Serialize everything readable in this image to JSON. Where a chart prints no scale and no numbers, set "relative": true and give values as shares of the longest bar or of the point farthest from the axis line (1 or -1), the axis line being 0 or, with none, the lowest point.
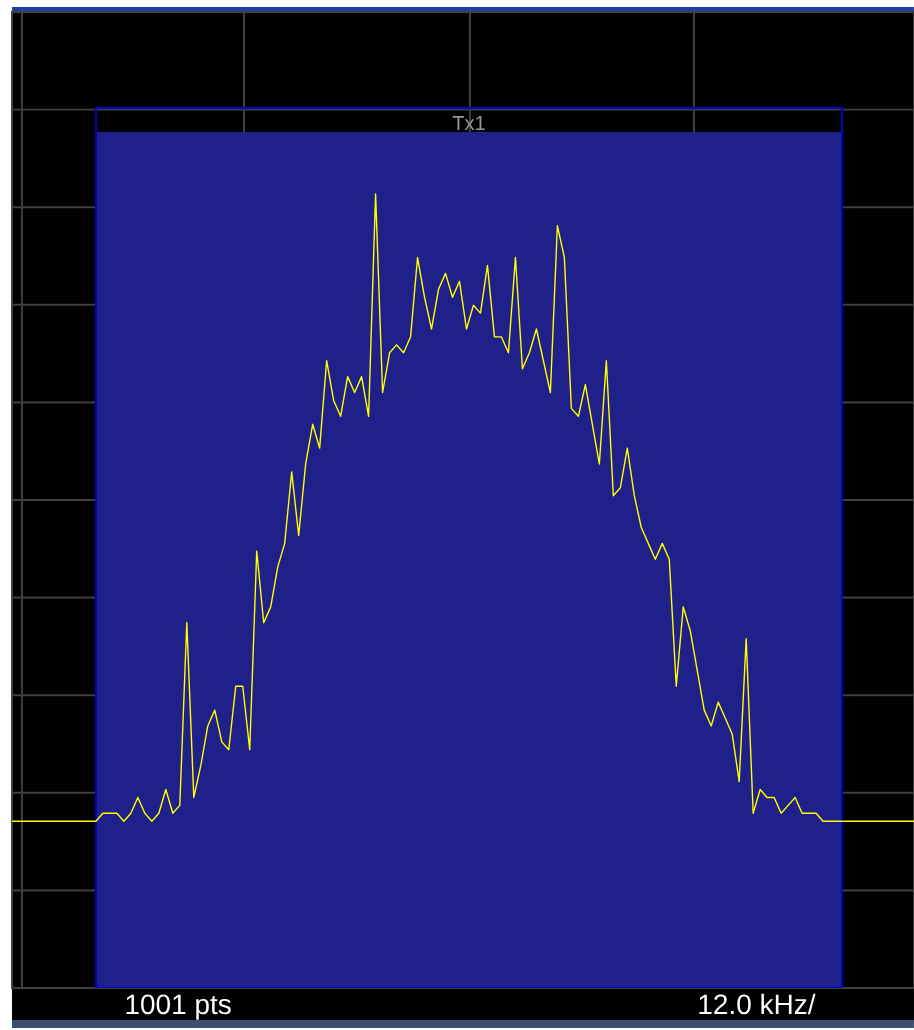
{
  "chart_data": {
    "type": "line",
    "relative": true,
    "color": "#ffff00",
    "categories": [
      null,
      null,
      null,
      null,
      null,
      null,
      null,
      null,
      null,
      null,
      null,
      null,
      null,
      null,
      null,
      null,
      null,
      null,
      null,
      null,
      null,
      null,
      null,
      null,
      null,
      null,
      null,
      null,
      null,
      null,
      null,
      null,
      null,
      null,
      null,
      null,
      null,
      null,
      null,
      null,
      null,
      null,
      null,
      null,
      null,
      null,
      null,
      null,
      null,
      null,
      null,
      null,
      null,
      null,
      null,
      null,
      null,
      null,
      null,
      null,
      null,
      null,
      null,
      null,
      null,
      null,
      null,
      null,
      null,
      null,
      null,
      null,
      null,
      null,
      null,
      null,
      null,
      null,
      null,
      null,
      null,
      null,
      null,
      null,
      null,
      null,
      null,
      null,
      null,
      null,
      null,
      null,
      null,
      null,
      null,
      null,
      null,
      null,
      null,
      null,
      null,
      null,
      null,
      null,
      null,
      null,
      null,
      null,
      null,
      null,
      null,
      null,
      null,
      null,
      null,
      null,
      null,
      null,
      null,
      null,
      null,
      null,
      null,
      null,
      null,
      null,
      null,
      null,
      null,
      null
    ],
    "values": [
      0.21,
      0.21,
      0.21,
      0.21,
      0.21,
      0.21,
      0.21,
      0.21,
      0.21,
      0.21,
      0.21,
      0.21,
      0.21,
      0.22,
      0.22,
      0.22,
      0.21,
      0.22,
      0.24,
      0.22,
      0.21,
      0.22,
      0.25,
      0.22,
      0.23,
      0.46,
      0.24,
      0.28,
      0.33,
      0.35,
      0.31,
      0.3,
      0.38,
      0.38,
      0.3,
      0.55,
      0.46,
      0.48,
      0.53,
      0.56,
      0.65,
      0.57,
      0.66,
      0.71,
      0.68,
      0.79,
      0.74,
      0.72,
      0.77,
      0.75,
      0.77,
      0.72,
      1.0,
      0.75,
      0.8,
      0.81,
      0.8,
      0.82,
      0.92,
      0.87,
      0.83,
      0.88,
      0.9,
      0.87,
      0.89,
      0.83,
      0.86,
      0.85,
      0.91,
      0.82,
      0.82,
      0.8,
      0.92,
      0.78,
      0.8,
      0.83,
      0.79,
      0.75,
      0.96,
      0.92,
      0.73,
      0.72,
      0.76,
      0.71,
      0.66,
      0.79,
      0.62,
      0.63,
      0.68,
      0.62,
      0.58,
      0.56,
      0.54,
      0.56,
      0.54,
      0.38,
      0.48,
      0.45,
      0.4,
      0.35,
      0.33,
      0.36,
      0.34,
      0.32,
      0.26,
      0.44,
      0.22,
      0.25,
      0.24,
      0.24,
      0.22,
      0.23,
      0.24,
      0.22,
      0.22,
      0.22,
      0.21,
      0.21,
      0.21,
      0.21,
      0.21,
      0.21,
      0.21,
      0.21,
      0.21,
      0.21,
      0.21,
      0.21,
      0.21,
      0.21
    ],
    "grid": true,
    "annotations": [
      "Tx1",
      "1001 pts",
      "12.0 kHz/"
    ]
  }
}
